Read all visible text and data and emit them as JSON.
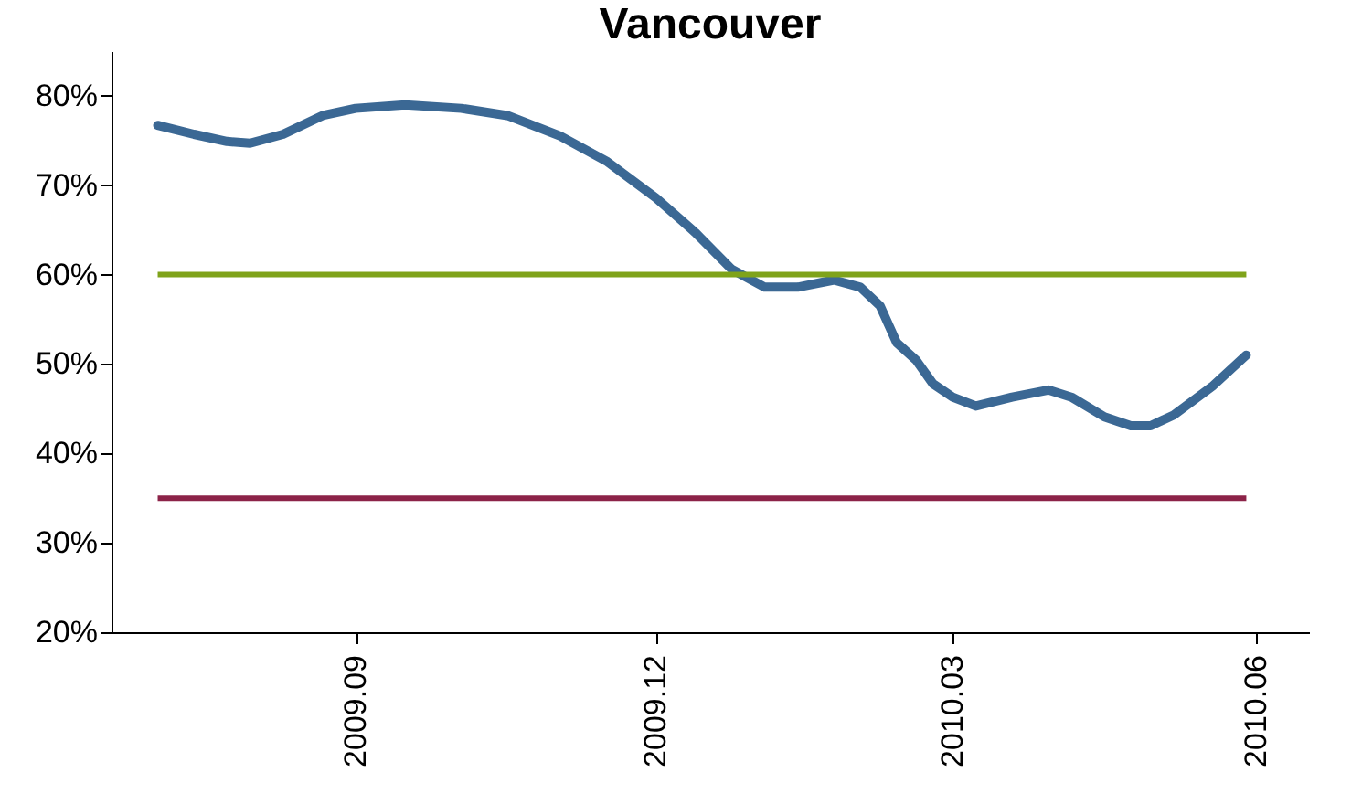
{
  "chart_data": {
    "type": "line",
    "title": "Vancouver",
    "series": [
      {
        "color": "#3b6894",
        "x": [
          "2009-07-03",
          "2009-07-14",
          "2009-07-24",
          "2009-07-31",
          "2009-08-10",
          "2009-08-22",
          "2009-09-01",
          "2009-09-16",
          "2009-10-03",
          "2009-10-17",
          "2009-11-02",
          "2009-11-16",
          "2009-12-01",
          "2009-12-13",
          "2009-12-24",
          "2010-01-03",
          "2010-01-13",
          "2010-01-24",
          "2010-02-01",
          "2010-02-07",
          "2010-02-12",
          "2010-02-18",
          "2010-02-23",
          "2010-03-01",
          "2010-03-08",
          "2010-03-19",
          "2010-03-30",
          "2010-04-06",
          "2010-04-16",
          "2010-04-24",
          "2010-04-30",
          "2010-05-07",
          "2010-05-19",
          "2010-05-29"
        ],
        "values": [
          76.7,
          75.7,
          74.9,
          74.7,
          75.7,
          77.8,
          78.6,
          79.0,
          78.6,
          77.8,
          75.5,
          72.7,
          68.6,
          64.7,
          60.6,
          58.6,
          58.6,
          59.4,
          58.6,
          56.5,
          52.4,
          50.4,
          47.8,
          46.3,
          45.3,
          46.3,
          47.1,
          46.3,
          44.1,
          43.1,
          43.1,
          44.3,
          47.6,
          51.0
        ]
      }
    ],
    "xlim": [
      "2009-06-19",
      "2010-06-17"
    ],
    "xticks": [
      {
        "value": "2009-09-01",
        "label": "2009.09"
      },
      {
        "value": "2009-12-01",
        "label": "2009.12"
      },
      {
        "value": "2010-03-01",
        "label": "2010.03"
      },
      {
        "value": "2010-06-01",
        "label": "2010.06"
      }
    ],
    "ylim": [
      20,
      85
    ],
    "yticks": [
      {
        "value": 20,
        "label": "20%"
      },
      {
        "value": 30,
        "label": "30%"
      },
      {
        "value": 40,
        "label": "40%"
      },
      {
        "value": 50,
        "label": "50%"
      },
      {
        "value": 60,
        "label": "60%"
      },
      {
        "value": 70,
        "label": "70%"
      },
      {
        "value": 80,
        "label": "80%"
      }
    ],
    "ref_lines": [
      {
        "axis": "y",
        "value": 60,
        "color": "#7fa31a"
      },
      {
        "axis": "y",
        "value": 35,
        "color": "#8c2348"
      }
    ],
    "grid": false,
    "marker": "none",
    "line_style": "solid"
  }
}
